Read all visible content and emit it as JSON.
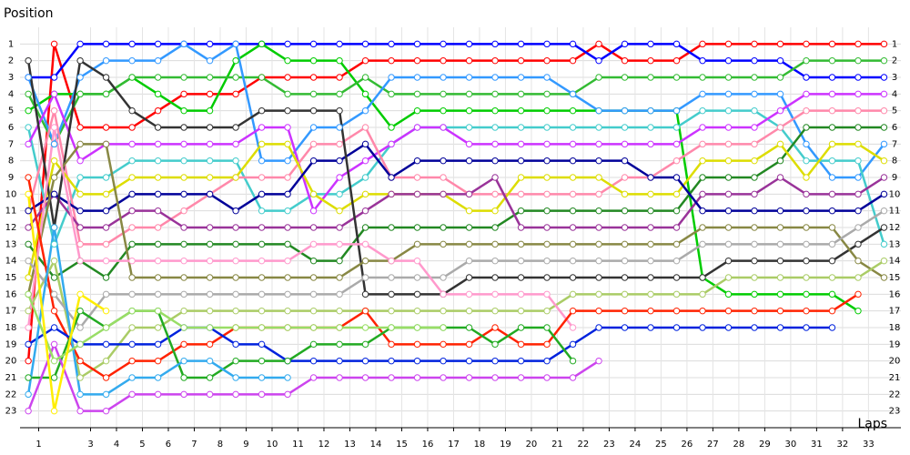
{
  "chart_data": {
    "type": "line",
    "y_label": "Position",
    "x_label": "Laps",
    "grid": true,
    "marker_fill": "#ffffff",
    "xlim": [
      -0.32,
      33.65
    ],
    "ylim": [
      24,
      0
    ],
    "yticks": [
      1,
      2,
      3,
      4,
      5,
      6,
      7,
      8,
      9,
      10,
      11,
      12,
      13,
      14,
      15,
      16,
      17,
      18,
      19,
      20,
      21,
      22,
      23
    ],
    "xticks": [
      {
        "value": 0.4,
        "label": "1"
      },
      {
        "value": 2.4,
        "label": "3"
      },
      {
        "value": 3.4,
        "label": "4"
      },
      {
        "value": 4.4,
        "label": "5"
      },
      {
        "value": 5.4,
        "label": "6"
      },
      {
        "value": 6.4,
        "label": "7"
      },
      {
        "value": 7.4,
        "label": "8"
      },
      {
        "value": 8.4,
        "label": "9"
      },
      {
        "value": 9.4,
        "label": "10"
      },
      {
        "value": 10.4,
        "label": "11"
      },
      {
        "value": 11.4,
        "label": "12"
      },
      {
        "value": 12.4,
        "label": "13"
      },
      {
        "value": 13.4,
        "label": "14"
      },
      {
        "value": 14.4,
        "label": "15"
      },
      {
        "value": 15.4,
        "label": "16"
      },
      {
        "value": 16.4,
        "label": "17"
      },
      {
        "value": 17.4,
        "label": "18"
      },
      {
        "value": 18.4,
        "label": "19"
      },
      {
        "value": 19.4,
        "label": "20"
      },
      {
        "value": 20.4,
        "label": "21"
      },
      {
        "value": 21.4,
        "label": "22"
      },
      {
        "value": 22.4,
        "label": "23"
      },
      {
        "value": 23.4,
        "label": "24"
      },
      {
        "value": 24.4,
        "label": "25"
      },
      {
        "value": 25.4,
        "label": "26"
      },
      {
        "value": 26.4,
        "label": "27"
      },
      {
        "value": 27.4,
        "label": "28"
      },
      {
        "value": 28.4,
        "label": "29"
      },
      {
        "value": 29.4,
        "label": "30"
      },
      {
        "value": 30.4,
        "label": "31"
      },
      {
        "value": 31.4,
        "label": "32"
      },
      {
        "value": 32.4,
        "label": "33"
      }
    ],
    "series": [
      {
        "color": "#ff0000",
        "values": [
          20,
          1,
          6,
          6,
          6,
          5,
          4,
          4,
          4,
          3,
          3,
          3,
          3,
          2,
          2,
          2,
          2,
          2,
          2,
          2,
          2,
          2,
          1,
          2,
          2,
          2,
          1,
          1,
          1,
          1,
          1,
          1,
          1,
          1
        ]
      },
      {
        "color": "#0000ff",
        "values": [
          3,
          3,
          1,
          1,
          1,
          1,
          1,
          1,
          1,
          1,
          1,
          1,
          1,
          1,
          1,
          1,
          1,
          1,
          1,
          1,
          1,
          1,
          2,
          1,
          1,
          1,
          2,
          2,
          2,
          2,
          3,
          3,
          3,
          3
        ]
      },
      {
        "color": "#00cc00",
        "values": [
          5,
          4,
          4,
          4,
          3,
          4,
          5,
          5,
          2,
          1,
          2,
          2,
          2,
          4,
          6,
          5,
          5,
          5,
          5,
          5,
          5,
          5,
          5,
          5,
          5,
          5,
          15,
          16,
          16,
          16,
          16,
          16,
          17,
          null
        ]
      },
      {
        "color": "#33bb33",
        "values": [
          4,
          7,
          4,
          4,
          3,
          3,
          3,
          3,
          3,
          3,
          4,
          4,
          4,
          3,
          4,
          4,
          4,
          4,
          4,
          4,
          4,
          4,
          3,
          3,
          3,
          3,
          3,
          3,
          3,
          3,
          2,
          2,
          2,
          2
        ]
      },
      {
        "color": "#3399ff",
        "values": [
          3,
          7,
          3,
          2,
          2,
          2,
          1,
          2,
          1,
          8,
          8,
          6,
          6,
          5,
          3,
          3,
          3,
          3,
          3,
          3,
          3,
          4,
          5,
          5,
          5,
          5,
          4,
          4,
          4,
          4,
          7,
          9,
          9,
          7
        ]
      },
      {
        "color": "#44cccc",
        "values": [
          6,
          13,
          9,
          9,
          8,
          8,
          8,
          8,
          8,
          11,
          11,
          10,
          10,
          9,
          7,
          6,
          6,
          6,
          6,
          6,
          6,
          6,
          6,
          6,
          6,
          6,
          5,
          5,
          5,
          6,
          8,
          8,
          8,
          13
        ]
      },
      {
        "color": "#cc33ff",
        "values": [
          7,
          4,
          8,
          7,
          7,
          7,
          7,
          7,
          7,
          6,
          6,
          11,
          9,
          8,
          7,
          6,
          6,
          7,
          7,
          7,
          7,
          7,
          7,
          7,
          7,
          7,
          6,
          6,
          6,
          5,
          4,
          4,
          4,
          4
        ]
      },
      {
        "color": "#ff88aa",
        "values": [
          11,
          5,
          13,
          13,
          12,
          12,
          11,
          10,
          9,
          9,
          9,
          7,
          7,
          6,
          9,
          9,
          9,
          10,
          10,
          10,
          10,
          10,
          10,
          9,
          9,
          8,
          7,
          7,
          7,
          6,
          5,
          5,
          5,
          5
        ]
      },
      {
        "color": "#228822",
        "values": [
          13,
          15,
          14,
          15,
          13,
          13,
          13,
          13,
          13,
          13,
          13,
          14,
          14,
          12,
          12,
          12,
          12,
          12,
          12,
          11,
          11,
          11,
          11,
          11,
          11,
          11,
          9,
          9,
          9,
          8,
          6,
          6,
          6,
          6
        ]
      },
      {
        "color": "#dddd00",
        "values": [
          15,
          8,
          10,
          10,
          9,
          9,
          9,
          9,
          9,
          7,
          7,
          10,
          11,
          10,
          10,
          10,
          10,
          11,
          11,
          9,
          9,
          9,
          9,
          10,
          10,
          10,
          8,
          8,
          8,
          7,
          9,
          7,
          7,
          8
        ]
      },
      {
        "color": "#993399",
        "values": [
          12,
          10,
          12,
          12,
          11,
          11,
          12,
          12,
          12,
          12,
          12,
          12,
          12,
          11,
          10,
          10,
          10,
          10,
          9,
          12,
          12,
          12,
          12,
          12,
          12,
          12,
          10,
          10,
          10,
          9,
          10,
          10,
          10,
          9
        ]
      },
      {
        "color": "#000099",
        "values": [
          11,
          10,
          11,
          11,
          10,
          10,
          10,
          10,
          11,
          10,
          10,
          8,
          8,
          7,
          9,
          8,
          8,
          8,
          8,
          8,
          8,
          8,
          8,
          8,
          9,
          9,
          11,
          11,
          11,
          11,
          11,
          11,
          11,
          10
        ]
      },
      {
        "color": "#333333",
        "values": [
          2,
          12,
          2,
          3,
          5,
          6,
          6,
          6,
          6,
          5,
          5,
          5,
          5,
          16,
          16,
          16,
          16,
          15,
          15,
          15,
          15,
          15,
          15,
          15,
          15,
          15,
          15,
          14,
          14,
          14,
          14,
          14,
          13,
          12
        ]
      },
      {
        "color": "#888844",
        "values": [
          16,
          9,
          7,
          7,
          15,
          15,
          15,
          15,
          15,
          15,
          15,
          15,
          15,
          14,
          14,
          13,
          13,
          13,
          13,
          13,
          13,
          13,
          13,
          13,
          13,
          13,
          12,
          12,
          12,
          12,
          12,
          12,
          14,
          15
        ]
      },
      {
        "color": "#aacc66",
        "values": [
          17,
          14,
          21,
          20,
          18,
          18,
          17,
          17,
          17,
          17,
          17,
          17,
          17,
          17,
          17,
          17,
          17,
          17,
          17,
          17,
          17,
          16,
          16,
          16,
          16,
          16,
          16,
          15,
          15,
          15,
          15,
          15,
          15,
          14
        ]
      },
      {
        "color": "#aaaaaa",
        "values": [
          14,
          16,
          18,
          16,
          16,
          16,
          16,
          16,
          16,
          16,
          16,
          16,
          16,
          15,
          15,
          15,
          15,
          14,
          14,
          14,
          14,
          14,
          14,
          14,
          14,
          14,
          13,
          13,
          13,
          13,
          13,
          13,
          12,
          11
        ]
      },
      {
        "color": "#ff99cc",
        "values": [
          18,
          6,
          14,
          14,
          14,
          14,
          14,
          14,
          14,
          14,
          14,
          13,
          13,
          13,
          14,
          14,
          16,
          16,
          16,
          16,
          16,
          18,
          null,
          null,
          null,
          null,
          null,
          null,
          null,
          null,
          null,
          null,
          null,
          null
        ]
      },
      {
        "color": "#ff2200",
        "values": [
          9,
          17,
          20,
          21,
          20,
          20,
          19,
          19,
          18,
          18,
          18,
          18,
          18,
          17,
          19,
          19,
          19,
          19,
          18,
          19,
          19,
          17,
          17,
          17,
          17,
          17,
          17,
          17,
          17,
          17,
          17,
          17,
          16,
          null
        ]
      },
      {
        "color": "#0022dd",
        "values": [
          19,
          18,
          19,
          19,
          19,
          19,
          18,
          18,
          19,
          19,
          20,
          20,
          20,
          20,
          20,
          20,
          20,
          20,
          20,
          20,
          20,
          19,
          18,
          18,
          18,
          18,
          18,
          18,
          18,
          18,
          18,
          18,
          null,
          null
        ]
      },
      {
        "color": "#22aa22",
        "values": [
          21,
          21,
          17,
          18,
          17,
          17,
          21,
          21,
          20,
          20,
          20,
          19,
          19,
          19,
          18,
          18,
          18,
          18,
          19,
          18,
          18,
          20,
          null,
          null,
          null,
          null,
          null,
          null,
          null,
          null,
          null,
          null,
          null,
          null
        ]
      },
      {
        "color": "#33aaee",
        "values": [
          22,
          12,
          22,
          22,
          21,
          21,
          20,
          20,
          21,
          21,
          21,
          null,
          null,
          null,
          null,
          null,
          null,
          null,
          null,
          null,
          null,
          null,
          null,
          null,
          null,
          null,
          null,
          null,
          null,
          null,
          null,
          null,
          null,
          null
        ]
      },
      {
        "color": "#cc44ee",
        "values": [
          23,
          19,
          23,
          23,
          22,
          22,
          22,
          22,
          22,
          22,
          22,
          21,
          21,
          21,
          21,
          21,
          21,
          21,
          21,
          21,
          21,
          21,
          20,
          null,
          null,
          null,
          null,
          null,
          null,
          null,
          null,
          null,
          null,
          null
        ]
      },
      {
        "color": "#99dd66",
        "values": [
          16,
          20,
          19,
          18,
          17,
          17,
          18,
          18,
          18,
          18,
          18,
          18,
          18,
          18,
          18,
          18,
          18,
          null,
          null,
          null,
          null,
          null,
          null,
          null,
          null,
          null,
          null,
          null,
          null,
          null,
          null,
          null,
          null,
          null
        ]
      },
      {
        "color": "#ffee00",
        "values": [
          10,
          23,
          16,
          17,
          null,
          null,
          null,
          null,
          null,
          null,
          null,
          null,
          null,
          null,
          null,
          null,
          null,
          null,
          null,
          null,
          null,
          null,
          null,
          null,
          null,
          null,
          null,
          null,
          null,
          null,
          null,
          null,
          null,
          null
        ]
      }
    ]
  }
}
